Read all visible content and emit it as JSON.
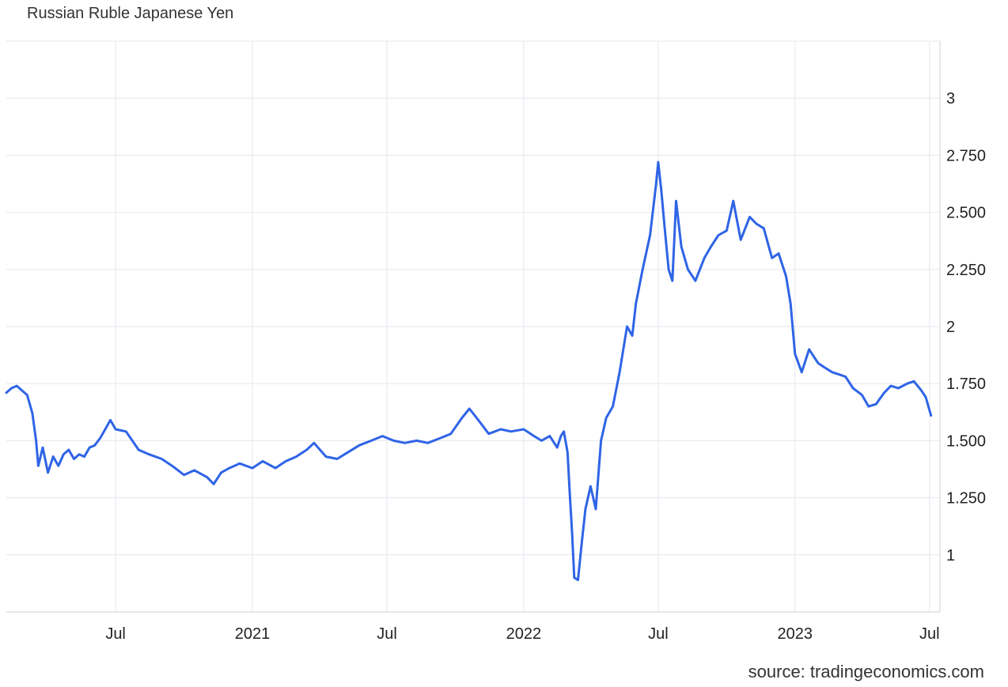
{
  "chart_data": {
    "type": "line",
    "title": "Russian Ruble Japanese Yen",
    "source": "source: tradingeconomics.com",
    "xlabel": "",
    "ylabel": "",
    "ylim": [
      0.75,
      3.25
    ],
    "xlim": [
      "2020-02-05",
      "2023-07-15"
    ],
    "grid": true,
    "x_ticks": [
      {
        "date": "2020-07-01",
        "label": "Jul"
      },
      {
        "date": "2021-01-01",
        "label": "2021"
      },
      {
        "date": "2021-07-01",
        "label": "Jul"
      },
      {
        "date": "2022-01-01",
        "label": "2022"
      },
      {
        "date": "2022-07-01",
        "label": "Jul"
      },
      {
        "date": "2023-01-01",
        "label": "2023"
      },
      {
        "date": "2023-07-01",
        "label": "Jul"
      }
    ],
    "y_ticks": [
      {
        "value": 1,
        "label": "1"
      },
      {
        "value": 1.25,
        "label": "1.250"
      },
      {
        "value": 1.5,
        "label": "1.500"
      },
      {
        "value": 1.75,
        "label": "1.750"
      },
      {
        "value": 2,
        "label": "2"
      },
      {
        "value": 2.25,
        "label": "2.250"
      },
      {
        "value": 2.5,
        "label": "2.500"
      },
      {
        "value": 2.75,
        "label": "2.750"
      },
      {
        "value": 3,
        "label": "3"
      }
    ],
    "colors": {
      "line": "#2f64e6",
      "grid": "#e6e6ee",
      "axis": "#cfcfd8"
    },
    "series": [
      {
        "name": "",
        "x": [
          "2020-02-05",
          "2020-02-12",
          "2020-02-19",
          "2020-02-26",
          "2020-03-04",
          "2020-03-11",
          "2020-03-16",
          "2020-03-19",
          "2020-03-25",
          "2020-04-01",
          "2020-04-08",
          "2020-04-15",
          "2020-04-22",
          "2020-04-29",
          "2020-05-06",
          "2020-05-13",
          "2020-05-20",
          "2020-05-27",
          "2020-06-03",
          "2020-06-10",
          "2020-06-17",
          "2020-06-24",
          "2020-07-01",
          "2020-07-15",
          "2020-08-01",
          "2020-08-15",
          "2020-09-01",
          "2020-09-15",
          "2020-10-01",
          "2020-10-15",
          "2020-11-01",
          "2020-11-10",
          "2020-11-20",
          "2020-12-01",
          "2020-12-15",
          "2021-01-01",
          "2021-01-15",
          "2021-02-01",
          "2021-02-15",
          "2021-03-01",
          "2021-03-15",
          "2021-03-25",
          "2021-04-10",
          "2021-04-25",
          "2021-05-10",
          "2021-05-25",
          "2021-06-10",
          "2021-06-25",
          "2021-07-10",
          "2021-07-25",
          "2021-08-10",
          "2021-08-25",
          "2021-09-10",
          "2021-09-25",
          "2021-10-10",
          "2021-10-20",
          "2021-11-01",
          "2021-11-15",
          "2021-12-01",
          "2021-12-15",
          "2022-01-01",
          "2022-01-15",
          "2022-01-25",
          "2022-02-05",
          "2022-02-15",
          "2022-02-20",
          "2022-02-24",
          "2022-03-01",
          "2022-03-04",
          "2022-03-07",
          "2022-03-10",
          "2022-03-15",
          "2022-03-20",
          "2022-03-25",
          "2022-04-01",
          "2022-04-08",
          "2022-04-15",
          "2022-04-22",
          "2022-05-01",
          "2022-05-10",
          "2022-05-20",
          "2022-05-27",
          "2022-06-01",
          "2022-06-10",
          "2022-06-20",
          "2022-06-28",
          "2022-07-01",
          "2022-07-05",
          "2022-07-10",
          "2022-07-15",
          "2022-07-20",
          "2022-07-25",
          "2022-08-01",
          "2022-08-10",
          "2022-08-20",
          "2022-09-01",
          "2022-09-10",
          "2022-09-20",
          "2022-10-01",
          "2022-10-10",
          "2022-10-20",
          "2022-11-01",
          "2022-11-10",
          "2022-11-20",
          "2022-12-01",
          "2022-12-10",
          "2022-12-20",
          "2022-12-26",
          "2023-01-01",
          "2023-01-10",
          "2023-01-20",
          "2023-02-01",
          "2023-02-10",
          "2023-02-20",
          "2023-03-01",
          "2023-03-10",
          "2023-03-20",
          "2023-04-01",
          "2023-04-10",
          "2023-04-20",
          "2023-05-01",
          "2023-05-10",
          "2023-05-20",
          "2023-06-01",
          "2023-06-10",
          "2023-06-20",
          "2023-06-26",
          "2023-07-03"
        ],
        "values": [
          1.71,
          1.73,
          1.74,
          1.72,
          1.7,
          1.62,
          1.5,
          1.39,
          1.47,
          1.36,
          1.43,
          1.39,
          1.44,
          1.46,
          1.42,
          1.44,
          1.43,
          1.47,
          1.48,
          1.51,
          1.55,
          1.59,
          1.55,
          1.54,
          1.46,
          1.44,
          1.42,
          1.39,
          1.35,
          1.37,
          1.34,
          1.31,
          1.36,
          1.38,
          1.4,
          1.38,
          1.41,
          1.38,
          1.41,
          1.43,
          1.46,
          1.49,
          1.43,
          1.42,
          1.45,
          1.48,
          1.5,
          1.52,
          1.5,
          1.49,
          1.5,
          1.49,
          1.51,
          1.53,
          1.6,
          1.64,
          1.59,
          1.53,
          1.55,
          1.54,
          1.55,
          1.52,
          1.5,
          1.52,
          1.47,
          1.52,
          1.54,
          1.45,
          1.27,
          1.1,
          0.9,
          0.89,
          1.05,
          1.2,
          1.3,
          1.2,
          1.5,
          1.6,
          1.65,
          1.8,
          2.0,
          1.96,
          2.1,
          2.25,
          2.4,
          2.62,
          2.72,
          2.6,
          2.42,
          2.25,
          2.2,
          2.55,
          2.35,
          2.25,
          2.2,
          2.3,
          2.35,
          2.4,
          2.42,
          2.55,
          2.38,
          2.48,
          2.45,
          2.43,
          2.3,
          2.32,
          2.22,
          2.1,
          1.88,
          1.8,
          1.9,
          1.84,
          1.82,
          1.8,
          1.79,
          1.78,
          1.73,
          1.7,
          1.65,
          1.66,
          1.71,
          1.74,
          1.73,
          1.75,
          1.76,
          1.72,
          1.69,
          1.61
        ]
      }
    ]
  }
}
